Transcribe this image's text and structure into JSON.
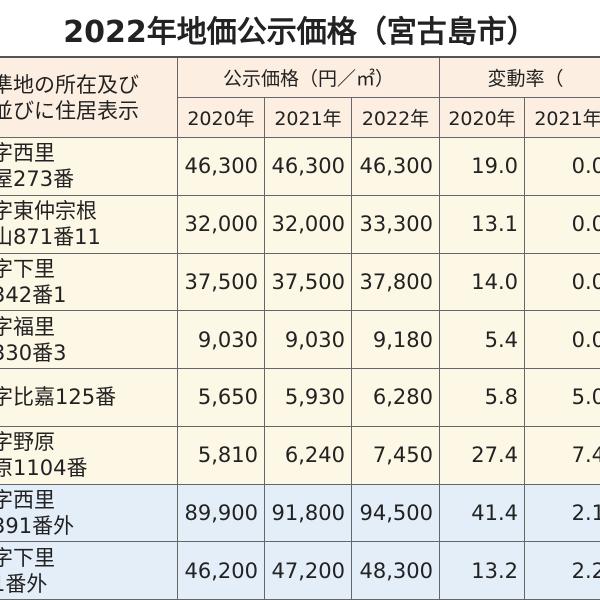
{
  "title": "2022年地価公示価格（宮古島市）",
  "header": {
    "location": [
      "準地の所在及び",
      "並びに住居表示"
    ],
    "price": "公示価格（円／㎡）",
    "change": "変動率（",
    "price_years": [
      "2020年",
      "2021年",
      "2022年"
    ],
    "change_years": [
      "2020年",
      "2021年"
    ]
  },
  "table": {
    "rows": [
      {
        "location": [
          "字西里",
          "屋273番"
        ],
        "prices": [
          "46,300",
          "46,300",
          "46,300"
        ],
        "changes": [
          "19.0",
          "0.0"
        ]
      },
      {
        "location": [
          "字東仲宗根",
          "山871番11"
        ],
        "prices": [
          "32,000",
          "32,000",
          "33,300"
        ],
        "changes": [
          "13.1",
          "0.0"
        ]
      },
      {
        "location": [
          "字下里",
          "342番1"
        ],
        "prices": [
          "37,500",
          "37,500",
          "37,800"
        ],
        "changes": [
          "14.0",
          "0.0"
        ]
      },
      {
        "location": [
          "字福里",
          "330番3"
        ],
        "prices": [
          "9,030",
          "9,030",
          "9,180"
        ],
        "changes": [
          "5.4",
          "0.0"
        ]
      },
      {
        "location": [
          "字比嘉125番"
        ],
        "prices": [
          "5,650",
          "5,930",
          "6,280"
        ],
        "changes": [
          "5.8",
          "5.0"
        ]
      },
      {
        "location": [
          "字野原",
          "原1104番"
        ],
        "prices": [
          "5,810",
          "6,240",
          "7,450"
        ],
        "changes": [
          "27.4",
          "7.4"
        ]
      },
      {
        "location": [
          "字西里",
          "391番外"
        ],
        "prices": [
          "89,900",
          "91,800",
          "94,500"
        ],
        "changes": [
          "41.4",
          "2.1"
        ],
        "commercial": true
      },
      {
        "location": [
          "字下里",
          "1番外"
        ],
        "prices": [
          "46,200",
          "47,200",
          "48,300"
        ],
        "changes": [
          "13.2",
          "2.2"
        ],
        "commercial": true
      }
    ]
  }
}
